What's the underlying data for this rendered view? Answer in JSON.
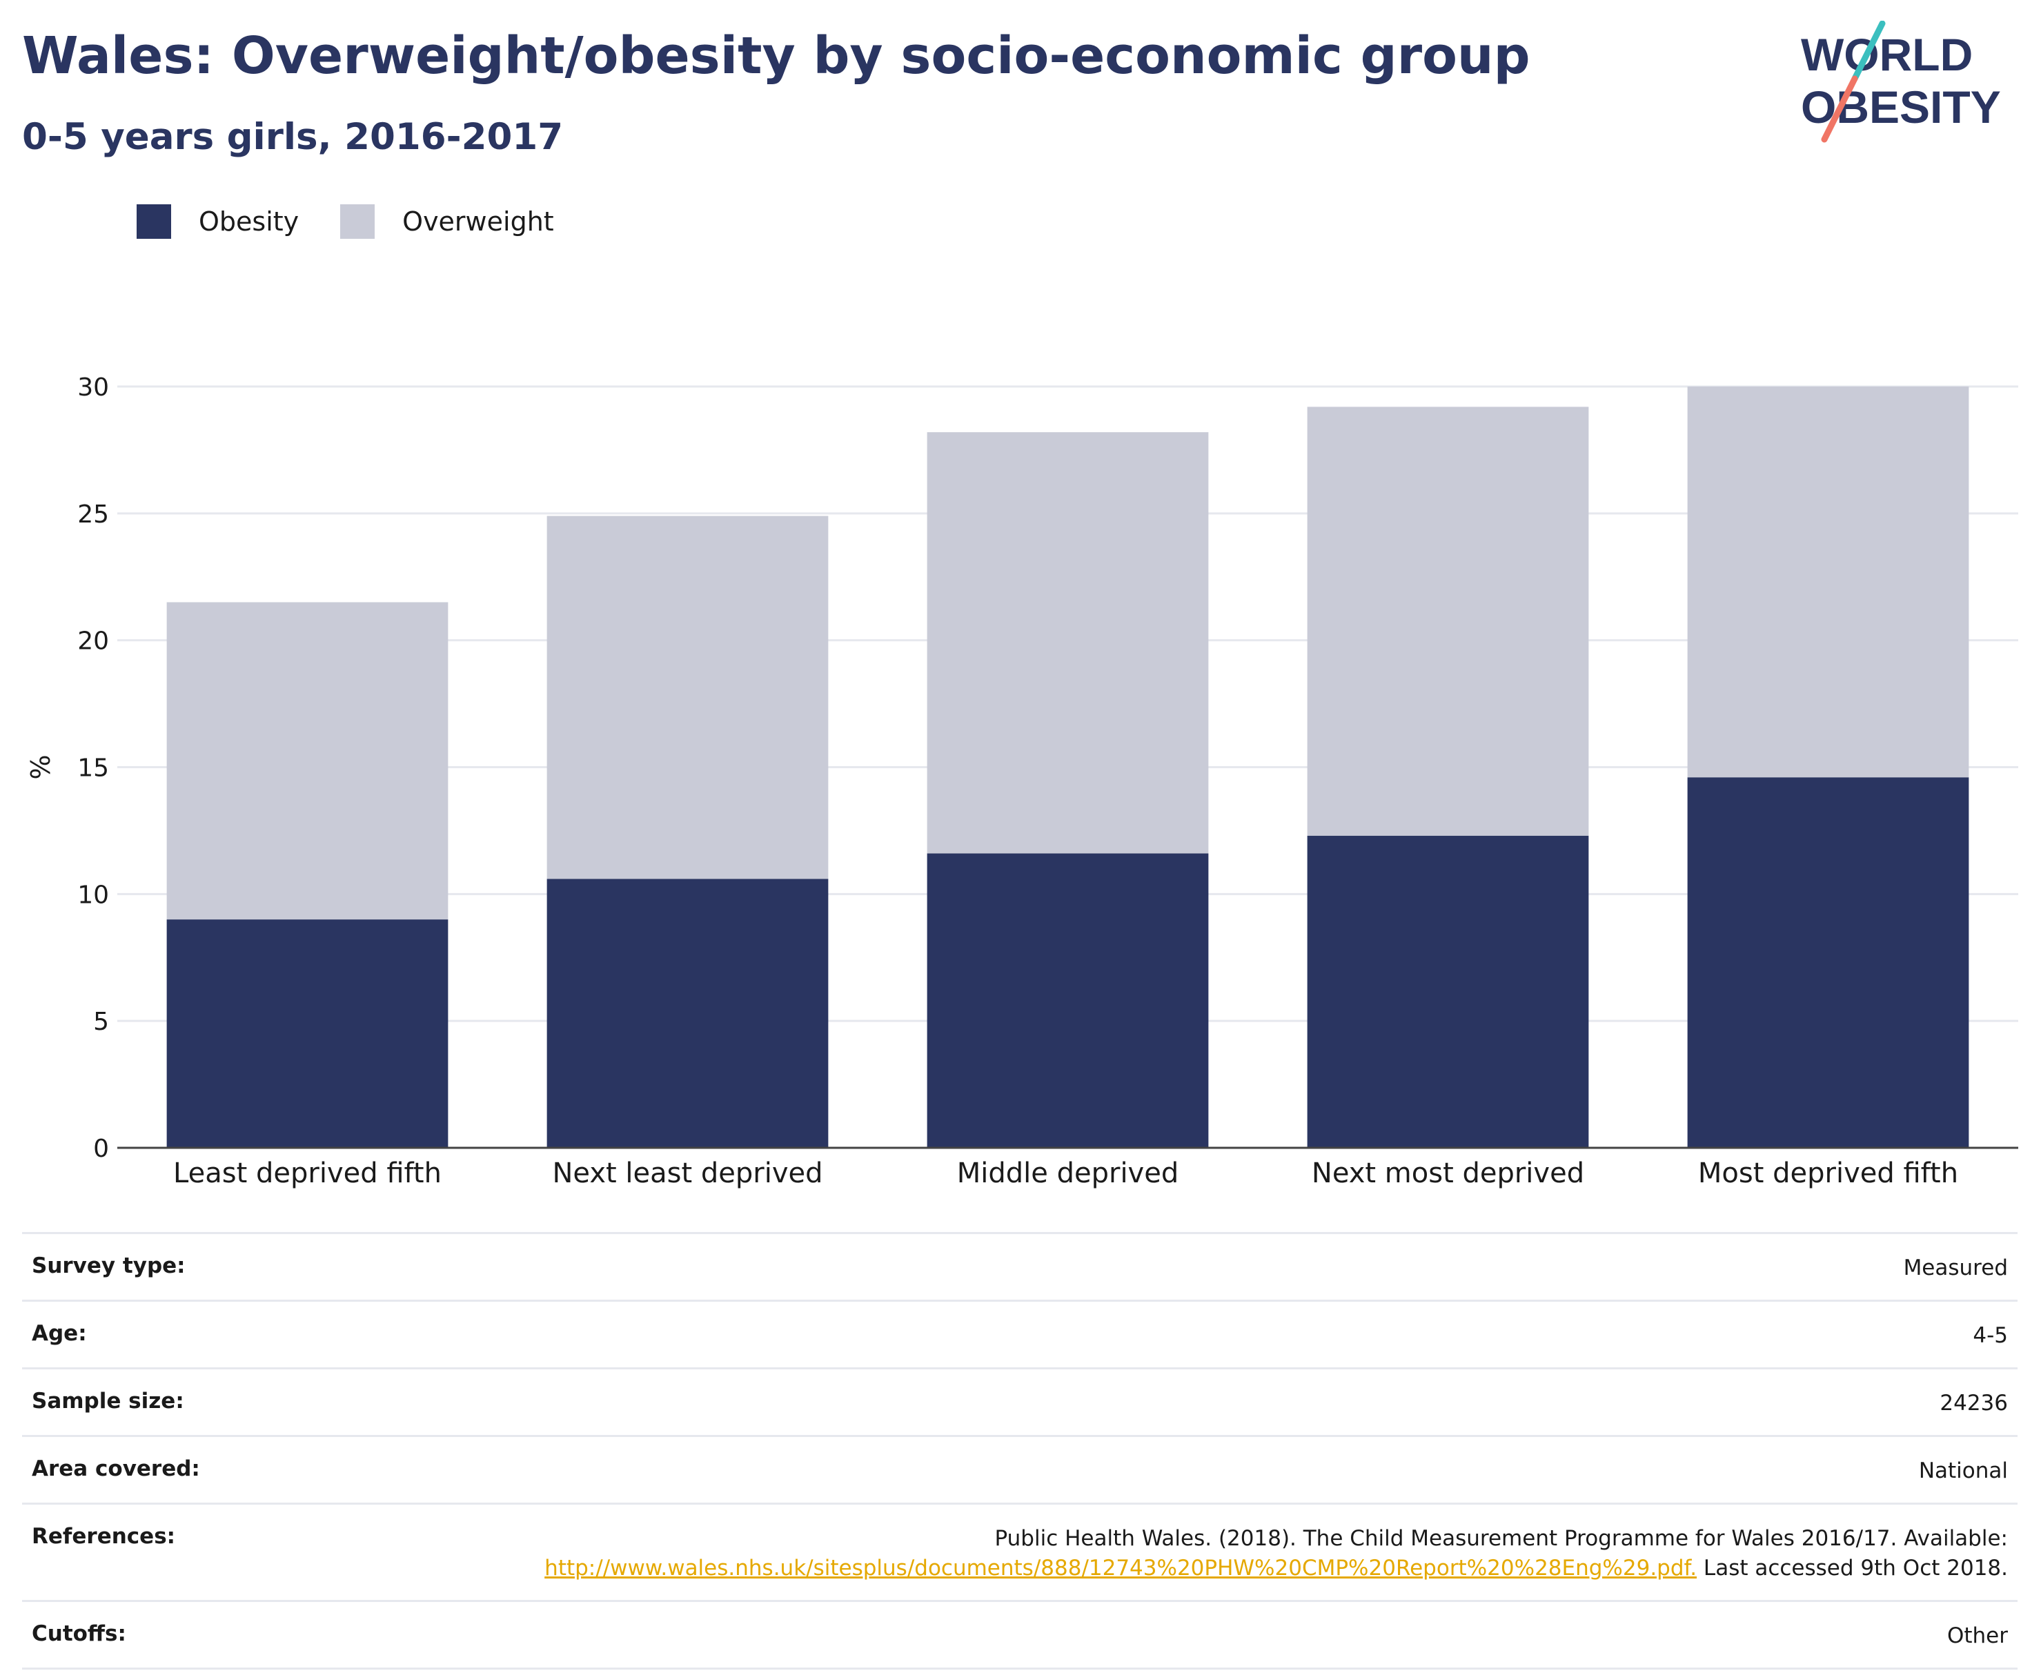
{
  "header": {
    "title": "Wales: Overweight/obesity by socio-economic group",
    "subtitle": "0-5 years girls, 2016-2017"
  },
  "logo": {
    "line1": "WORLD",
    "line2": "OBESITY",
    "colors": {
      "text": "#2a3561",
      "slash_top": "#3bbfbf",
      "slash_bottom": "#f07565"
    }
  },
  "legend": [
    {
      "label": "Obesity",
      "color": "#2a3561"
    },
    {
      "label": "Overweight",
      "color": "#c9cbd7"
    }
  ],
  "chart_data": {
    "type": "bar",
    "stacked": true,
    "categories": [
      "Least deprived fifth",
      "Next least deprived",
      "Middle deprived",
      "Next most deprived",
      "Most deprived fifth"
    ],
    "series": [
      {
        "name": "Obesity",
        "color": "#2a3561",
        "values": [
          9.0,
          10.6,
          11.6,
          12.3,
          14.6
        ]
      },
      {
        "name": "Overweight",
        "color": "#c9cbd7",
        "values": [
          12.5,
          14.3,
          16.6,
          16.9,
          15.4
        ]
      }
    ],
    "ylabel": "%",
    "ylim": [
      0,
      30
    ],
    "yticks": [
      0,
      5,
      10,
      15,
      20,
      25,
      30
    ],
    "grid": true,
    "legend_position": "top-left"
  },
  "info": {
    "survey_type": {
      "label": "Survey type:",
      "value": "Measured"
    },
    "age": {
      "label": "Age:",
      "value": "4-5"
    },
    "sample_size": {
      "label": "Sample size:",
      "value": "24236"
    },
    "area_covered": {
      "label": "Area covered:",
      "value": "National"
    },
    "references": {
      "label": "References:",
      "text_before": "Public Health Wales. (2018). The Child Measurement Programme for Wales 2016/17. Available:",
      "link": "http://www.wales.nhs.uk/sitesplus/documents/888/12743%20PHW%20CMP%20Report%20%28Eng%29.pdf.",
      "text_after": "Last accessed 9th Oct 2018."
    },
    "cutoffs": {
      "label": "Cutoffs:",
      "value": "Other"
    }
  }
}
